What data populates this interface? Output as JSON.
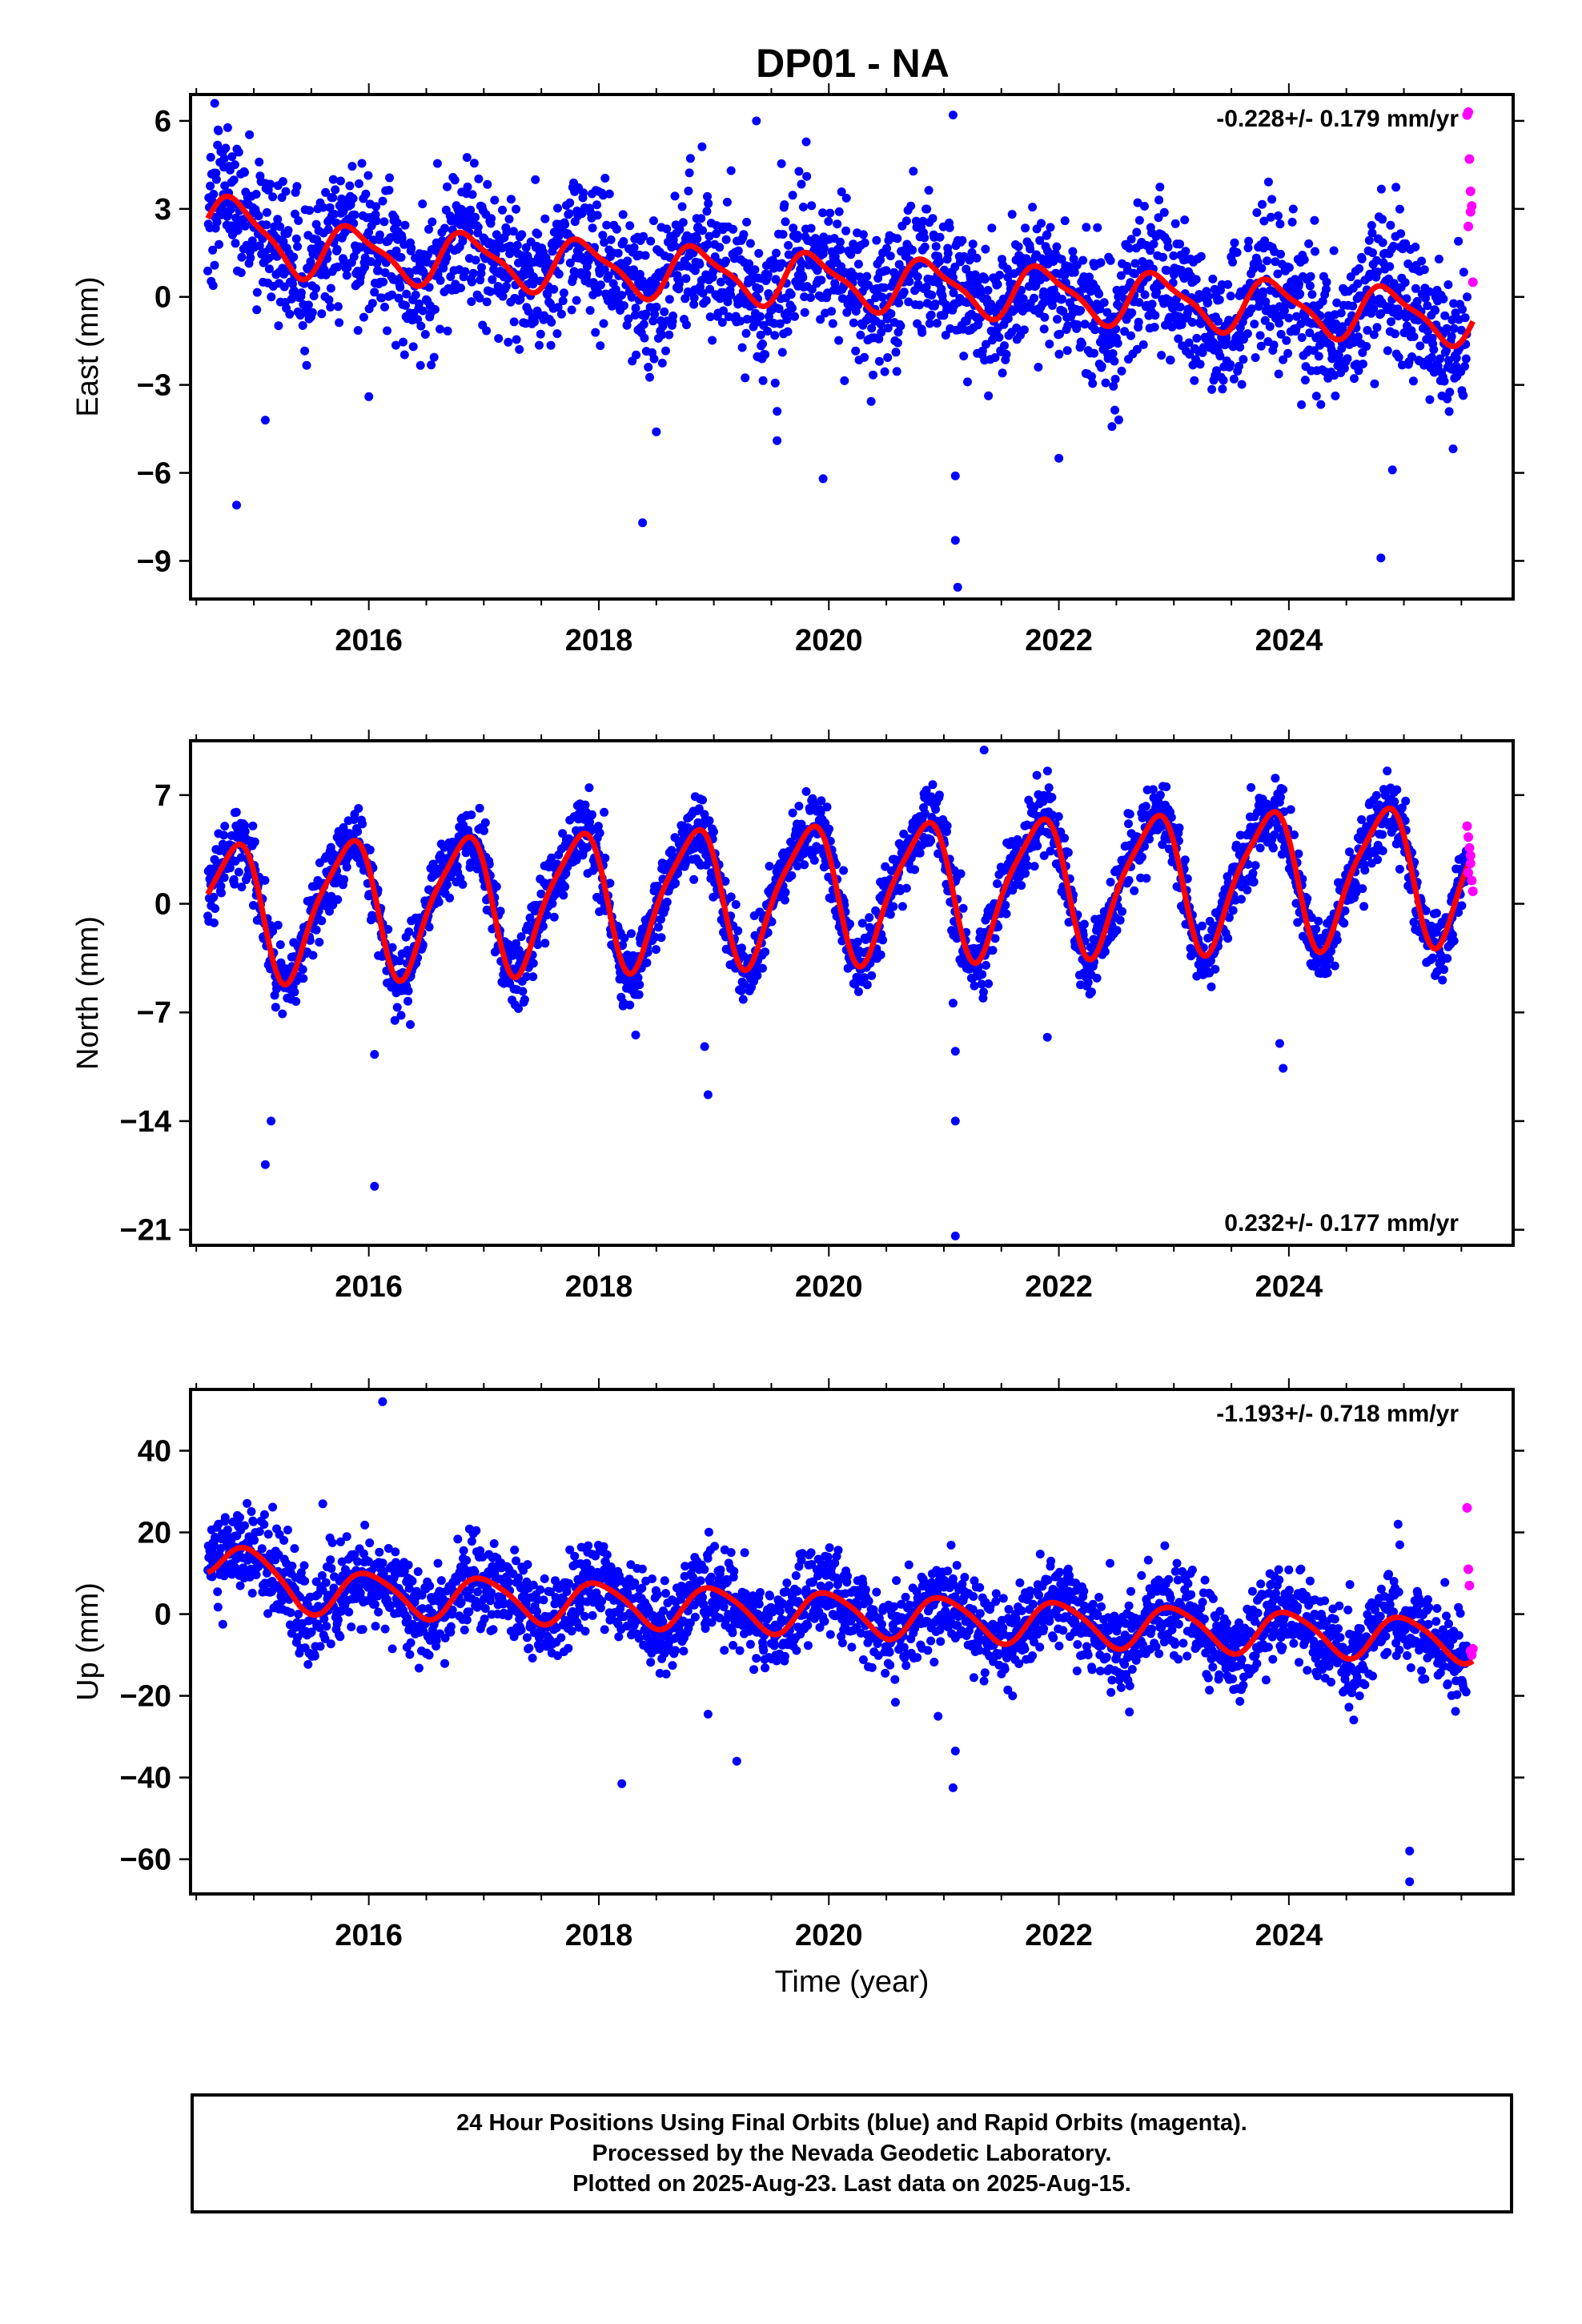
{
  "title": "DP01 - NA",
  "colors": {
    "final_orbits": "#0000ff",
    "rapid_orbits": "#ff00ff",
    "model_fit": "#ff0000",
    "frame": "#000000"
  },
  "caption": {
    "line1": "24 Hour Positions Using Final Orbits (blue) and Rapid Orbits (magenta).",
    "line2": "Processed by the Nevada Geodetic Laboratory.",
    "line3": "Plotted on 2025-Aug-23. Last data on 2025-Aug-15."
  },
  "chart_data": [
    {
      "type": "scatter",
      "name": "east",
      "ylabel": "East (mm)",
      "xlabel": "",
      "rate_label": "-0.228+/- 0.179 mm/yr",
      "rate_placement": "top-right",
      "xlim": [
        2014.45,
        2025.95
      ],
      "ylim": [
        -10.3,
        6.9
      ],
      "xticks": [
        2016,
        2018,
        2020,
        2022,
        2024
      ],
      "xtick_labels": [
        "2016",
        "2018",
        "2020",
        "2022",
        "2024"
      ],
      "yticks": [
        6,
        3,
        0,
        -3,
        -6,
        -9
      ],
      "ytick_labels": [
        "6",
        "3",
        "0",
        "−3",
        "−6",
        "−9"
      ],
      "grid": false,
      "series": [
        {
          "role": "final-orbits",
          "model": {
            "offset": 0.55,
            "trend_per_yr": -0.228,
            "ref_year": 2020.0,
            "annual_amp": 0.85,
            "annual_phase": 0.62,
            "semi_amp": 0.25,
            "semi_phase": 0.1,
            "early_offset": 1.0
          },
          "scatter_std": 1.2,
          "seed": 101,
          "x_start": 2014.6,
          "x_end": 2025.55,
          "n_points": 2600,
          "outliers": [
            [
              2014.66,
              6.6
            ],
            [
              2014.85,
              -7.1
            ],
            [
              2015.1,
              -4.2
            ],
            [
              2016.0,
              -3.4
            ],
            [
              2018.38,
              -7.7
            ],
            [
              2018.5,
              -4.6
            ],
            [
              2019.37,
              6.0
            ],
            [
              2019.55,
              -4.9
            ],
            [
              2019.95,
              -6.2
            ],
            [
              2021.08,
              6.2
            ],
            [
              2021.1,
              -6.1
            ],
            [
              2021.1,
              -8.3
            ],
            [
              2021.12,
              -9.9
            ],
            [
              2022.0,
              -5.5
            ],
            [
              2024.8,
              -8.9
            ],
            [
              2024.9,
              -5.9
            ]
          ]
        },
        {
          "role": "rapid-orbits",
          "x": [
            2025.55,
            2025.56,
            2025.57,
            2025.58,
            2025.59,
            2025.6,
            2025.56,
            2025.58
          ],
          "y": [
            6.2,
            6.3,
            4.7,
            3.6,
            3.1,
            0.5,
            2.4,
            2.9
          ]
        },
        {
          "role": "model-fit",
          "fit_x_start": 2014.6,
          "fit_x_end": 2025.6
        }
      ]
    },
    {
      "type": "scatter",
      "name": "north",
      "ylabel": "North (mm)",
      "xlabel": "",
      "rate_label": "0.232+/- 0.177 mm/yr",
      "rate_placement": "bottom-right",
      "xlim": [
        2014.45,
        2025.95
      ],
      "ylim": [
        -22.0,
        10.5
      ],
      "xticks": [
        2016,
        2018,
        2020,
        2022,
        2024
      ],
      "xtick_labels": [
        "2016",
        "2018",
        "2020",
        "2022",
        "2024"
      ],
      "yticks": [
        7,
        0,
        -7,
        -14,
        -21
      ],
      "ytick_labels": [
        "7",
        "0",
        "−7",
        "−14",
        "−21"
      ],
      "grid": false,
      "series": [
        {
          "role": "final-orbits",
          "model": {
            "offset": 0.8,
            "trend_per_yr": 0.232,
            "ref_year": 2020.0,
            "annual_amp": 4.3,
            "annual_phase": 0.56,
            "semi_amp": 0.9,
            "semi_phase": 0.35,
            "early_offset": 0.0
          },
          "scatter_std": 1.15,
          "seed": 202,
          "x_start": 2014.6,
          "x_end": 2025.55,
          "n_points": 2600,
          "outliers": [
            [
              2015.1,
              -16.8
            ],
            [
              2015.15,
              -14.0
            ],
            [
              2016.05,
              -18.2
            ],
            [
              2016.05,
              -9.7
            ],
            [
              2018.95,
              -12.3
            ],
            [
              2018.92,
              -9.2
            ],
            [
              2021.1,
              -9.5
            ],
            [
              2021.1,
              -14.0
            ],
            [
              2021.1,
              -21.4
            ],
            [
              2021.35,
              9.9
            ],
            [
              2023.92,
              -9.0
            ],
            [
              2023.95,
              -10.6
            ],
            [
              2021.08,
              -6.4
            ],
            [
              2021.9,
              -8.6
            ]
          ]
        },
        {
          "role": "rapid-orbits",
          "x": [
            2025.55,
            2025.56,
            2025.57,
            2025.58,
            2025.59,
            2025.6,
            2025.56,
            2025.58
          ],
          "y": [
            5.0,
            4.3,
            3.6,
            2.6,
            1.5,
            0.8,
            2.0,
            3.1
          ]
        },
        {
          "role": "model-fit",
          "fit_x_start": 2014.6,
          "fit_x_end": 2025.6
        }
      ]
    },
    {
      "type": "scatter",
      "name": "up",
      "ylabel": "Up (mm)",
      "xlabel": "Time (year)",
      "rate_label": "-1.193+/- 0.718 mm/yr",
      "rate_placement": "top-right",
      "xlim": [
        2014.45,
        2025.95
      ],
      "ylim": [
        -68.5,
        55.0
      ],
      "xticks": [
        2016,
        2018,
        2020,
        2022,
        2024
      ],
      "xtick_labels": [
        "2016",
        "2018",
        "2020",
        "2022",
        "2024"
      ],
      "yticks": [
        40,
        20,
        0,
        -20,
        -40,
        -60
      ],
      "ytick_labels": [
        "40",
        "20",
        "0",
        "−20",
        "−40",
        "−60"
      ],
      "grid": false,
      "series": [
        {
          "role": "final-orbits",
          "model": {
            "offset": 0.2,
            "trend_per_yr": -1.193,
            "ref_year": 2020.0,
            "annual_amp": 5.2,
            "annual_phase": 0.75,
            "semi_amp": 0.8,
            "semi_phase": 0.2,
            "early_offset": 8.5
          },
          "scatter_std": 5.5,
          "seed": 303,
          "x_start": 2014.6,
          "x_end": 2025.55,
          "n_points": 2600,
          "outliers": [
            [
              2016.12,
              52.0
            ],
            [
              2018.2,
              -41.5
            ],
            [
              2018.95,
              -24.5
            ],
            [
              2019.2,
              -36.0
            ],
            [
              2021.08,
              -42.5
            ],
            [
              2021.1,
              -33.5
            ],
            [
              2025.05,
              -58.0
            ],
            [
              2025.05,
              -65.5
            ],
            [
              2024.95,
              22.0
            ],
            [
              2015.6,
              27.0
            ],
            [
              2020.95,
              -25.0
            ]
          ]
        },
        {
          "role": "rapid-orbits",
          "x": [
            2025.55,
            2025.56,
            2025.57,
            2025.58,
            2025.59,
            2025.6
          ],
          "y": [
            26.0,
            11.0,
            7.0,
            -9.0,
            -10.0,
            -8.5
          ]
        },
        {
          "role": "model-fit",
          "fit_x_start": 2014.6,
          "fit_x_end": 2025.6
        }
      ]
    }
  ]
}
